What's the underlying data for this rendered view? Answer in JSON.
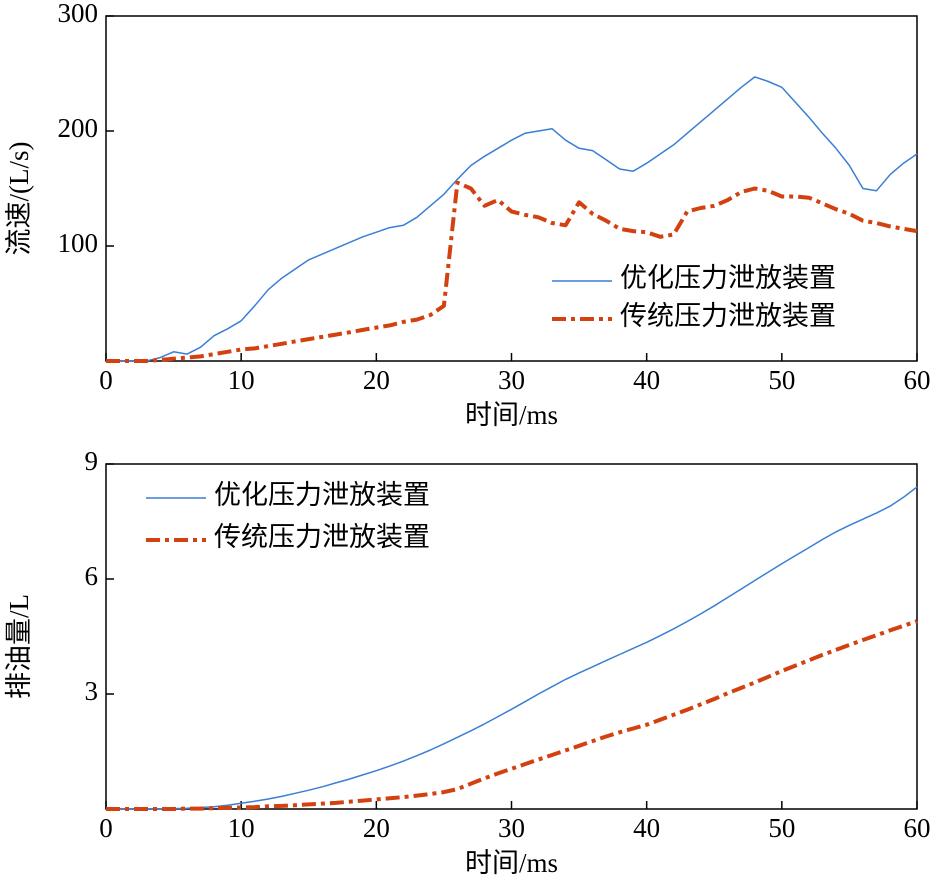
{
  "chart_data": [
    {
      "type": "line",
      "ylabel": "流速/(L/s)",
      "xlabel": "时间/ms",
      "xlim": [
        0,
        60
      ],
      "xticks": [
        0,
        10,
        20,
        30,
        40,
        50,
        60
      ],
      "ylim": [
        0,
        300
      ],
      "yticks": [
        100,
        200,
        300
      ],
      "grid": false,
      "legend": "lower right",
      "x": [
        0,
        1,
        2,
        3,
        4,
        5,
        6,
        7,
        8,
        9,
        10,
        11,
        12,
        13,
        14,
        15,
        16,
        17,
        18,
        19,
        20,
        21,
        22,
        23,
        24,
        25,
        26,
        27,
        28,
        29,
        30,
        31,
        32,
        33,
        34,
        35,
        36,
        37,
        38,
        39,
        40,
        41,
        42,
        43,
        44,
        45,
        46,
        47,
        48,
        49,
        50,
        51,
        52,
        53,
        54,
        55,
        56,
        57,
        58,
        59,
        60
      ],
      "series": [
        {
          "name": "优化压力泄放装置",
          "color": "#3a7fd5",
          "style": "solid",
          "values": [
            0,
            0,
            0,
            0,
            3,
            8,
            6,
            12,
            22,
            28,
            35,
            48,
            62,
            72,
            80,
            88,
            93,
            98,
            103,
            108,
            112,
            116,
            118,
            125,
            135,
            145,
            158,
            170,
            178,
            185,
            192,
            198,
            200,
            202,
            192,
            185,
            183,
            175,
            167,
            165,
            172,
            180,
            188,
            198,
            208,
            218,
            228,
            238,
            247,
            243,
            238,
            225,
            212,
            198,
            185,
            170,
            150,
            148,
            162,
            172,
            180
          ]
        },
        {
          "name": "传统压力泄放装置",
          "color": "#d2410f",
          "style": "dashdot",
          "values": [
            0,
            0,
            0,
            0,
            1,
            2,
            3,
            4,
            6,
            8,
            10,
            11,
            13,
            15,
            17,
            19,
            21,
            23,
            25,
            27,
            29,
            31,
            34,
            36,
            40,
            48,
            155,
            150,
            135,
            140,
            130,
            127,
            125,
            120,
            118,
            138,
            128,
            122,
            115,
            113,
            112,
            108,
            110,
            130,
            133,
            135,
            140,
            147,
            150,
            148,
            143,
            143,
            142,
            137,
            132,
            128,
            122,
            120,
            117,
            115,
            113
          ]
        }
      ]
    },
    {
      "type": "line",
      "ylabel": "排油量/L",
      "xlabel": "时间/ms",
      "xlim": [
        0,
        60
      ],
      "xticks": [
        0,
        10,
        20,
        30,
        40,
        50,
        60
      ],
      "ylim": [
        0,
        9
      ],
      "yticks": [
        3,
        6,
        9
      ],
      "grid": false,
      "legend": "upper left",
      "x": [
        0,
        1,
        2,
        3,
        4,
        5,
        6,
        7,
        8,
        9,
        10,
        11,
        12,
        13,
        14,
        15,
        16,
        17,
        18,
        19,
        20,
        21,
        22,
        23,
        24,
        25,
        26,
        27,
        28,
        29,
        30,
        31,
        32,
        33,
        34,
        35,
        36,
        37,
        38,
        39,
        40,
        41,
        42,
        43,
        44,
        45,
        46,
        47,
        48,
        49,
        50,
        51,
        52,
        53,
        54,
        55,
        56,
        57,
        58,
        59,
        60
      ],
      "series": [
        {
          "name": "优化压力泄放装置",
          "color": "#3a7fd5",
          "style": "solid",
          "values": [
            0,
            0,
            0,
            0,
            0,
            0.01,
            0.02,
            0.04,
            0.06,
            0.1,
            0.15,
            0.2,
            0.26,
            0.33,
            0.41,
            0.49,
            0.58,
            0.68,
            0.78,
            0.89,
            1.0,
            1.12,
            1.25,
            1.39,
            1.54,
            1.7,
            1.87,
            2.04,
            2.22,
            2.41,
            2.6,
            2.8,
            3.0,
            3.19,
            3.38,
            3.55,
            3.71,
            3.87,
            4.03,
            4.19,
            4.35,
            4.52,
            4.7,
            4.89,
            5.09,
            5.3,
            5.52,
            5.74,
            5.96,
            6.18,
            6.4,
            6.61,
            6.82,
            7.03,
            7.23,
            7.4,
            7.56,
            7.72,
            7.9,
            8.13,
            8.4
          ]
        },
        {
          "name": "传统压力泄放装置",
          "color": "#d2410f",
          "style": "dashdot",
          "values": [
            0,
            0,
            0,
            0,
            0,
            0,
            0.01,
            0.01,
            0.02,
            0.03,
            0.04,
            0.05,
            0.07,
            0.08,
            0.1,
            0.12,
            0.14,
            0.16,
            0.19,
            0.22,
            0.25,
            0.28,
            0.31,
            0.35,
            0.39,
            0.44,
            0.52,
            0.66,
            0.8,
            0.93,
            1.05,
            1.17,
            1.29,
            1.41,
            1.53,
            1.65,
            1.77,
            1.89,
            2.0,
            2.1,
            2.2,
            2.33,
            2.46,
            2.59,
            2.73,
            2.87,
            3.02,
            3.16,
            3.3,
            3.45,
            3.6,
            3.74,
            3.88,
            4.02,
            4.15,
            4.28,
            4.41,
            4.53,
            4.66,
            4.78,
            4.9
          ]
        }
      ]
    }
  ]
}
